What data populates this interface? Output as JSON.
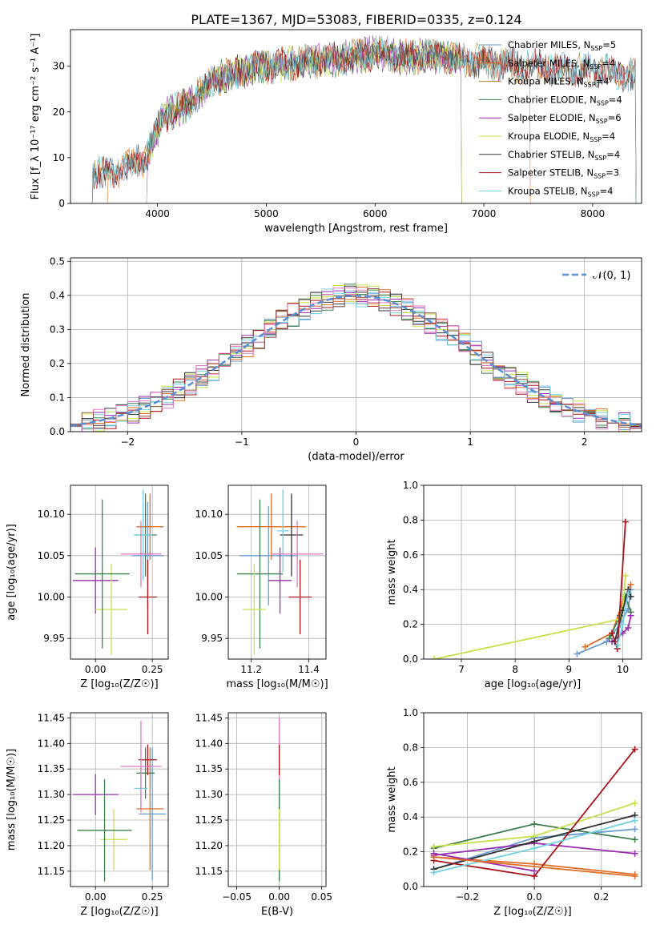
{
  "figure": {
    "title": "PLATE=1367, MJD=53083, FIBERID=0335, z=0.124"
  },
  "chart_data": [
    {
      "id": "spectrum",
      "type": "line",
      "xlabel": "wavelength [Angstrom, rest frame]",
      "ylabel": "Flux [f_λ 10⁻¹⁷ erg cm⁻² s⁻¹ A⁻¹]",
      "xlim": [
        3200,
        8450
      ],
      "ylim": [
        0,
        38
      ],
      "xticks": [
        4000,
        5000,
        6000,
        7000,
        8000
      ],
      "yticks": [
        0,
        10,
        20,
        30
      ],
      "legend_loc": "upper-right",
      "series": [
        {
          "name": "Chabrier MILES, N_SSP=5",
          "color": "#6b9bd1",
          "start": 3400,
          "end": 8400
        },
        {
          "name": "Salpeter MILES, N_SSP=4",
          "color": "#e06f2b",
          "start": 3540,
          "end": 7430
        },
        {
          "name": "Kroupa MILES, N_SSP=4",
          "color": "#b07d2a",
          "start": 3400,
          "end": 8400
        },
        {
          "name": "Chabrier ELODIE, N_SSP=4",
          "color": "#3f7f4f",
          "start": 3900,
          "end": 6800
        },
        {
          "name": "Salpeter ELODIE, N_SSP=6",
          "color": "#9a2db1",
          "start": 3900,
          "end": 6800
        },
        {
          "name": "Kroupa ELODIE, N_SSP=4",
          "color": "#c8e04a",
          "start": 3900,
          "end": 6800
        },
        {
          "name": "Chabrier STELIB, N_SSP=4",
          "color": "#333333",
          "start": 3400,
          "end": 8400
        },
        {
          "name": "Salpeter STELIB, N_SSP=3",
          "color": "#a8141c",
          "start": 3400,
          "end": 8400
        },
        {
          "name": "Kroupa STELIB, N_SSP=4",
          "color": "#73d0e0",
          "start": 3400,
          "end": 8400
        }
      ],
      "continuum": {
        "x": [
          3400,
          3550,
          3700,
          3900,
          4050,
          4300,
          4500,
          4800,
          5000,
          5400,
          5800,
          6000,
          6300,
          6600,
          7000,
          7400,
          8000,
          8400
        ],
        "y": [
          7,
          6,
          8,
          10,
          19,
          22,
          27,
          29,
          30,
          31,
          32,
          33,
          32,
          32,
          31,
          30,
          29,
          28
        ]
      }
    },
    {
      "id": "residuals",
      "type": "line",
      "xlabel": "(data-model)/error",
      "ylabel": "Normed distribution",
      "xlim": [
        -2.5,
        2.5
      ],
      "ylim": [
        0,
        0.51
      ],
      "xticks": [
        -2,
        -1,
        0,
        1,
        2
      ],
      "yticks": [
        0.0,
        0.1,
        0.2,
        0.3,
        0.4,
        0.5
      ],
      "legend": [
        "𝒩(0, 1)"
      ],
      "legend_loc": "upper-right",
      "bin_width": 0.1,
      "hist_colors": [
        "#6b9bd1",
        "#e06f2b",
        "#3f7f4f",
        "#9a2db1",
        "#c8e04a",
        "#333333",
        "#a8141c",
        "#73d0e0",
        "#e377c2",
        "#8c564b"
      ],
      "gauss_color": "#5a8fd6"
    },
    {
      "id": "age-vs-Z",
      "type": "scatter",
      "xlabel": "Z [log₁₀(Z/Z☉)]",
      "ylabel": "age  [log₁₀(age/yr)]",
      "xlim": [
        -0.11,
        0.32
      ],
      "ylim": [
        9.925,
        10.135
      ],
      "xticks": [
        0.0,
        0.25
      ],
      "xtick_labels": [
        "0.00",
        "0.25"
      ],
      "yticks": [
        9.95,
        10.0,
        10.05,
        10.1
      ],
      "yticklabels": [
        "9.95",
        "10.00",
        "10.05",
        "10.10"
      ],
      "points": [
        {
          "x": 0.23,
          "y": 10.05,
          "xerr": 0.07,
          "yerr": 0.065,
          "color": "#6b9bd1"
        },
        {
          "x": 0.24,
          "y": 10.085,
          "xerr": 0.06,
          "yerr": 0.04,
          "color": "#e06f2b"
        },
        {
          "x": 0.22,
          "y": 10.075,
          "xerr": 0.05,
          "yerr": 0.05,
          "color": "#3f7f4f"
        },
        {
          "x": 0.0,
          "y": 10.02,
          "xerr": 0.1,
          "yerr": 0.04,
          "color": "#9a2db1"
        },
        {
          "x": 0.07,
          "y": 9.985,
          "xerr": 0.07,
          "yerr": 0.055,
          "color": "#c8e04a"
        },
        {
          "x": 0.03,
          "y": 10.028,
          "xerr": 0.12,
          "yerr": 0.09,
          "color": "#3f7f4f"
        },
        {
          "x": 0.23,
          "y": 10.0,
          "xerr": 0.04,
          "yerr": 0.045,
          "color": "#a8141c"
        },
        {
          "x": 0.21,
          "y": 10.075,
          "xerr": 0.04,
          "yerr": 0.055,
          "color": "#73d0e0"
        },
        {
          "x": 0.2,
          "y": 10.052,
          "xerr": 0.09,
          "yerr": 0.04,
          "color": "#e377c2"
        }
      ]
    },
    {
      "id": "age-vs-mass",
      "type": "scatter",
      "xlabel": "mass [log₁₀(M/M☉)]",
      "ylabel": "",
      "xlim": [
        11.12,
        11.46
      ],
      "ylim": [
        9.925,
        10.135
      ],
      "xticks": [
        11.2,
        11.4
      ],
      "xtick_labels": [
        "11.2",
        "11.4"
      ],
      "yticks": [
        9.95,
        10.0,
        10.05,
        10.1
      ],
      "yticklabels": [
        "9.95",
        "10.00",
        "10.05",
        "10.10"
      ],
      "points": [
        {
          "x": 11.26,
          "y": 10.05,
          "xerr": 0.1,
          "yerr": 0.06,
          "color": "#6b9bd1"
        },
        {
          "x": 11.27,
          "y": 10.085,
          "xerr": 0.12,
          "yerr": 0.04,
          "color": "#e06f2b"
        },
        {
          "x": 11.23,
          "y": 10.028,
          "xerr": 0.08,
          "yerr": 0.09,
          "color": "#3f7f4f"
        },
        {
          "x": 11.3,
          "y": 10.02,
          "xerr": 0.04,
          "yerr": 0.04,
          "color": "#9a2db1"
        },
        {
          "x": 11.21,
          "y": 9.985,
          "xerr": 0.04,
          "yerr": 0.055,
          "color": "#c8e04a"
        },
        {
          "x": 11.34,
          "y": 10.075,
          "xerr": 0.04,
          "yerr": 0.05,
          "color": "#333333"
        },
        {
          "x": 11.37,
          "y": 10.0,
          "xerr": 0.04,
          "yerr": 0.045,
          "color": "#a8141c"
        },
        {
          "x": 11.31,
          "y": 10.08,
          "xerr": 0.02,
          "yerr": 0.05,
          "color": "#73d0e0"
        },
        {
          "x": 11.36,
          "y": 10.052,
          "xerr": 0.09,
          "yerr": 0.04,
          "color": "#e377c2"
        }
      ]
    },
    {
      "id": "weight-vs-age",
      "type": "line",
      "xlabel": "age  [log₁₀(age/yr)]",
      "ylabel": "mass weight",
      "xlim": [
        6.3,
        10.35
      ],
      "ylim": [
        0,
        1.0
      ],
      "xticks": [
        7,
        8,
        9,
        10
      ],
      "yticks": [
        0.0,
        0.2,
        0.4,
        0.6,
        0.8,
        1.0
      ],
      "series": [
        {
          "color": "#6b9bd1",
          "points": [
            [
              9.15,
              0.03
            ],
            [
              9.7,
              0.1
            ],
            [
              9.95,
              0.2
            ],
            [
              10.1,
              0.29
            ],
            [
              10.15,
              0.4
            ]
          ]
        },
        {
          "color": "#e06f2b",
          "points": [
            [
              9.3,
              0.07
            ],
            [
              9.8,
              0.15
            ],
            [
              10.0,
              0.33
            ],
            [
              10.15,
              0.43
            ]
          ]
        },
        {
          "color": "#3f7f4f",
          "points": [
            [
              9.75,
              0.12
            ],
            [
              9.95,
              0.25
            ],
            [
              10.05,
              0.36
            ],
            [
              10.15,
              0.27
            ]
          ]
        },
        {
          "color": "#9a2db1",
          "points": [
            [
              9.8,
              0.1
            ],
            [
              10.0,
              0.15
            ],
            [
              10.1,
              0.18
            ],
            [
              10.15,
              0.25
            ]
          ]
        },
        {
          "color": "#c8e04a",
          "points": [
            [
              6.5,
              0.0
            ],
            [
              9.95,
              0.23
            ],
            [
              10.0,
              0.29
            ],
            [
              10.05,
              0.48
            ]
          ]
        },
        {
          "color": "#333333",
          "points": [
            [
              9.85,
              0.1
            ],
            [
              10.0,
              0.28
            ],
            [
              10.1,
              0.4
            ],
            [
              10.15,
              0.36
            ]
          ]
        },
        {
          "color": "#a8141c",
          "points": [
            [
              9.8,
              0.15
            ],
            [
              9.9,
              0.06
            ],
            [
              10.05,
              0.79
            ]
          ]
        },
        {
          "color": "#73d0e0",
          "points": [
            [
              9.9,
              0.08
            ],
            [
              10.0,
              0.2
            ],
            [
              10.1,
              0.38
            ]
          ]
        }
      ]
    },
    {
      "id": "mass-vs-Z",
      "type": "scatter",
      "xlabel": "Z [log₁₀(Z/Z☉)]",
      "ylabel": "mass [log₁₀(M/M☉)]",
      "xlim": [
        -0.11,
        0.32
      ],
      "ylim": [
        11.12,
        11.46
      ],
      "xticks": [
        0.0,
        0.25
      ],
      "xtick_labels": [
        "0.00",
        "0.25"
      ],
      "yticks": [
        11.15,
        11.2,
        11.25,
        11.3,
        11.35,
        11.4,
        11.45
      ],
      "yticklabels": [
        "11.15",
        "11.20",
        "11.25",
        "11.30",
        "11.35",
        "11.40",
        "11.45"
      ],
      "points": [
        {
          "x": 0.25,
          "y": 11.262,
          "xerr": 0.06,
          "yerr": 0.13,
          "color": "#6b9bd1"
        },
        {
          "x": 0.24,
          "y": 11.272,
          "xerr": 0.06,
          "yerr": 0.12,
          "color": "#e06f2b"
        },
        {
          "x": 0.22,
          "y": 11.342,
          "xerr": 0.04,
          "yerr": 0.05,
          "color": "#3f7f4f"
        },
        {
          "x": 0.0,
          "y": 11.3,
          "xerr": 0.1,
          "yerr": 0.04,
          "color": "#9a2db1"
        },
        {
          "x": 0.08,
          "y": 11.212,
          "xerr": 0.06,
          "yerr": 0.06,
          "color": "#c8e04a"
        },
        {
          "x": 0.04,
          "y": 11.23,
          "xerr": 0.12,
          "yerr": 0.1,
          "color": "#3f7f4f"
        },
        {
          "x": 0.23,
          "y": 11.368,
          "xerr": 0.04,
          "yerr": 0.03,
          "color": "#a8141c"
        },
        {
          "x": 0.2,
          "y": 11.312,
          "xerr": 0.03,
          "yerr": 0.04,
          "color": "#73d0e0"
        },
        {
          "x": 0.2,
          "y": 11.355,
          "xerr": 0.09,
          "yerr": 0.09,
          "color": "#e377c2"
        }
      ]
    },
    {
      "id": "mass-vs-ebv",
      "type": "scatter",
      "xlabel": "E(B-V)",
      "ylabel": "",
      "xlim": [
        -0.06,
        0.055
      ],
      "ylim": [
        11.12,
        11.46
      ],
      "xticks": [
        -0.05,
        0.0,
        0.05
      ],
      "xtick_labels": [
        "−0.05",
        "0.00",
        "0.05"
      ],
      "yticks": [
        11.15,
        11.2,
        11.25,
        11.3,
        11.35,
        11.4,
        11.45
      ],
      "yticklabels": [
        "11.15",
        "11.20",
        "11.25",
        "11.30",
        "11.35",
        "11.40",
        "11.45"
      ],
      "points": [
        {
          "x": 0.0,
          "y": 11.262,
          "xerr": 0,
          "yerr": 0.13,
          "color": "#6b9bd1"
        },
        {
          "x": 0.0,
          "y": 11.36,
          "xerr": 0,
          "yerr": 0.09,
          "color": "#e377c2"
        },
        {
          "x": 0.0,
          "y": 11.23,
          "xerr": 0,
          "yerr": 0.1,
          "color": "#3f7f4f"
        },
        {
          "x": 0.0,
          "y": 11.368,
          "xerr": 0,
          "yerr": 0.03,
          "color": "#a8141c"
        },
        {
          "x": 0.0,
          "y": 11.212,
          "xerr": 0,
          "yerr": 0.06,
          "color": "#c8e04a"
        }
      ]
    },
    {
      "id": "weight-vs-Z",
      "type": "line",
      "xlabel": "Z [log₁₀(Z/Z☉)]",
      "ylabel": "mass weight",
      "xlim": [
        -0.33,
        0.32
      ],
      "ylim": [
        0,
        1.0
      ],
      "xticks": [
        -0.2,
        0.0,
        0.2
      ],
      "xtick_labels": [
        "−0.2",
        "0.0",
        "0.2"
      ],
      "yticks": [
        0.0,
        0.2,
        0.4,
        0.6,
        0.8,
        1.0
      ],
      "series": [
        {
          "color": "#6b9bd1",
          "points": [
            [
              -0.3,
              0.1
            ],
            [
              0.0,
              0.28
            ],
            [
              0.3,
              0.33
            ]
          ]
        },
        {
          "color": "#e06f2b",
          "points": [
            [
              -0.3,
              0.17
            ],
            [
              0.0,
              0.13
            ],
            [
              0.3,
              0.07
            ]
          ]
        },
        {
          "color": "#3f7f4f",
          "points": [
            [
              -0.3,
              0.22
            ],
            [
              0.0,
              0.36
            ],
            [
              0.3,
              0.27
            ]
          ]
        },
        {
          "color": "#9a2db1",
          "points": [
            [
              -0.3,
              0.18
            ],
            [
              0.0,
              0.25
            ],
            [
              0.3,
              0.19
            ]
          ]
        },
        {
          "color": "#c8e04a",
          "points": [
            [
              -0.3,
              0.23
            ],
            [
              0.0,
              0.29
            ],
            [
              0.3,
              0.48
            ]
          ]
        },
        {
          "color": "#333333",
          "points": [
            [
              -0.3,
              0.1
            ],
            [
              0.0,
              0.26
            ],
            [
              0.3,
              0.41
            ]
          ]
        },
        {
          "color": "#a8141c",
          "points": [
            [
              -0.3,
              0.15
            ],
            [
              0.0,
              0.06
            ],
            [
              0.3,
              0.79
            ]
          ]
        },
        {
          "color": "#73d0e0",
          "points": [
            [
              -0.3,
              0.08
            ],
            [
              0.0,
              0.22
            ],
            [
              0.3,
              0.38
            ]
          ]
        },
        {
          "color": "#9a2db1",
          "points": [
            [
              -0.3,
              0.19
            ],
            [
              0.0,
              0.09
            ]
          ]
        },
        {
          "color": "#e06f2b",
          "points": [
            [
              -0.3,
              0.17
            ],
            [
              0.3,
              0.06
            ]
          ]
        }
      ]
    }
  ]
}
